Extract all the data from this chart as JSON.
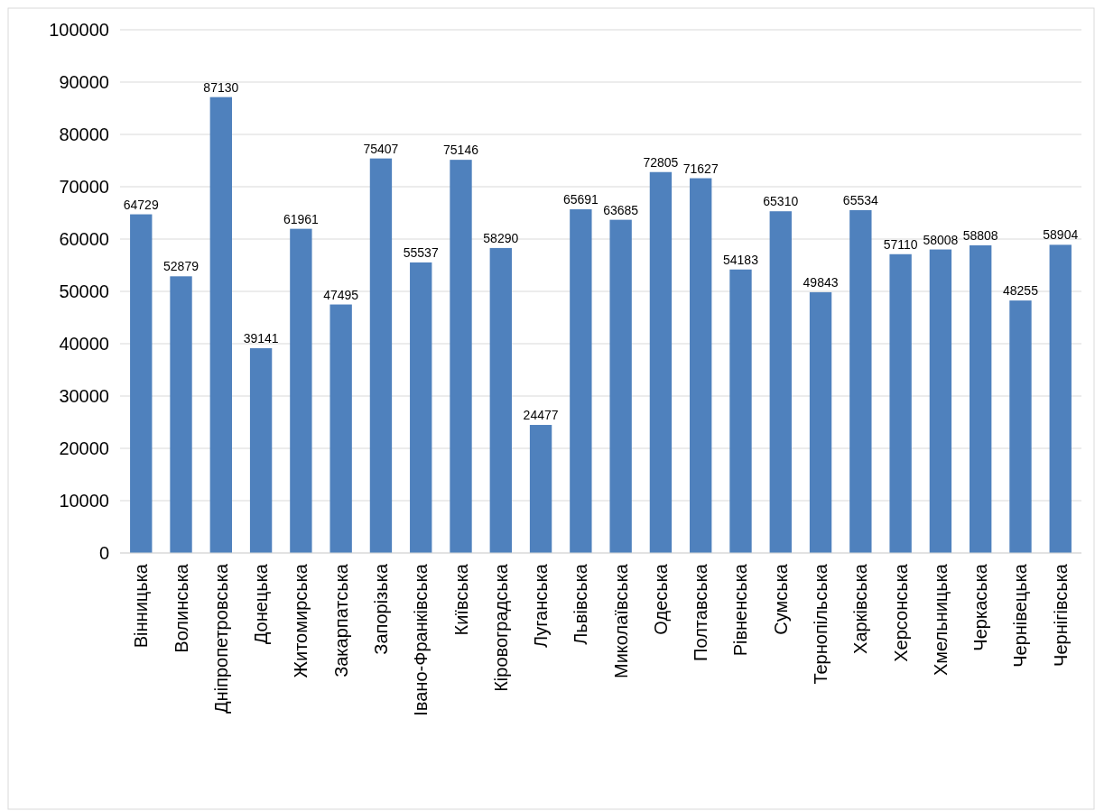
{
  "chart_data": {
    "type": "bar",
    "categories": [
      "Вінницька",
      "Волинська",
      "Дніпропетровська",
      "Донецька",
      "Житомирська",
      "Закарпатська",
      "Запорізька",
      "Івано-Франківська",
      "Київська",
      "Кіровоградська",
      "Луганська",
      "Львівська",
      "Миколаївська",
      "Одеська",
      "Полтавська",
      "Рівненська",
      "Сумська",
      "Тернопільська",
      "Харківська",
      "Херсонська",
      "Хмельницька",
      "Черкаська",
      "Чернівецька",
      "Чернігівська"
    ],
    "values": [
      64729,
      52879,
      87130,
      39141,
      61961,
      47495,
      75407,
      55537,
      75146,
      58290,
      24477,
      65691,
      63685,
      72805,
      71627,
      54183,
      65310,
      49843,
      65534,
      57110,
      58008,
      58808,
      48255,
      58904
    ],
    "color": "#4f81bd",
    "ylim": [
      0,
      100000
    ],
    "yticks": [
      0,
      10000,
      20000,
      30000,
      40000,
      50000,
      60000,
      70000,
      80000,
      90000,
      100000
    ],
    "grid": "y",
    "data_labels": true
  }
}
